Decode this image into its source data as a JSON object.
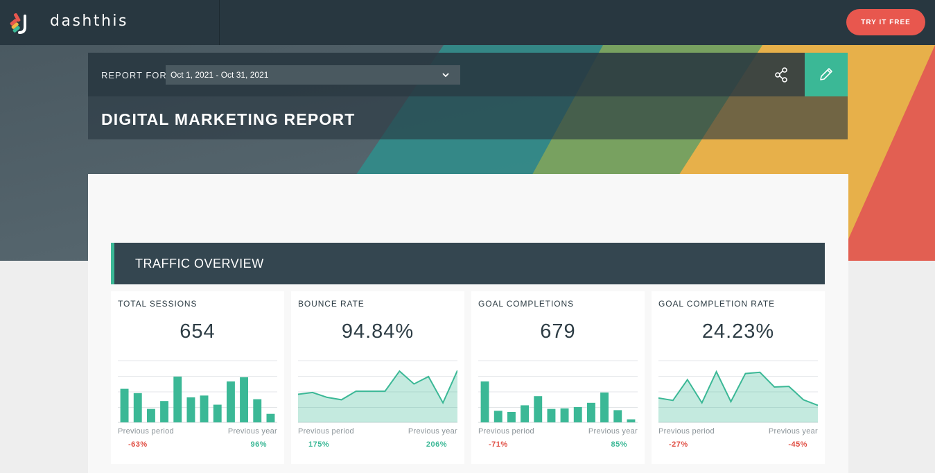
{
  "brand": {
    "name": "dashthis",
    "cta_label": "TRY IT FREE"
  },
  "report": {
    "report_for_label": "REPORT FOR",
    "date_range": "Oct 1, 2021 - Oct 31, 2021",
    "title": "DIGITAL MARKETING REPORT"
  },
  "section": {
    "title": "TRAFFIC OVERVIEW"
  },
  "colors": {
    "accent": "#3bb896",
    "negative": "#e04e43",
    "cta": "#e8574e",
    "header_dark": "#283740"
  },
  "icons": {
    "share": "share-icon",
    "edit": "pencil-icon",
    "dropdown": "chevron-down-icon"
  },
  "widgets": [
    {
      "title": "TOTAL SESSIONS",
      "value": "654",
      "chart_type": "bar",
      "series": [
        55,
        48,
        22,
        35,
        75,
        41,
        44,
        29,
        67,
        74,
        38,
        14
      ],
      "prev_period_label": "Previous period",
      "prev_period_change": "-63%",
      "prev_period_trend": "negative",
      "prev_year_label": "Previous year",
      "prev_year_change": "96%",
      "prev_year_trend": "positive"
    },
    {
      "title": "BOUNCE RATE",
      "value": "94.84%",
      "chart_type": "area",
      "series": [
        46,
        49,
        41,
        37,
        51,
        51,
        51,
        84,
        63,
        75,
        32,
        85
      ],
      "prev_period_label": "Previous period",
      "prev_period_change": "175%",
      "prev_period_trend": "positive",
      "prev_year_label": "Previous year",
      "prev_year_change": "206%",
      "prev_year_trend": "positive"
    },
    {
      "title": "GOAL COMPLETIONS",
      "value": "679",
      "chart_type": "bar",
      "series": [
        67,
        19,
        17,
        28,
        43,
        22,
        23,
        25,
        32,
        49,
        20,
        5
      ],
      "prev_period_label": "Previous period",
      "prev_period_change": "-71%",
      "prev_period_trend": "negative",
      "prev_year_label": "Previous year",
      "prev_year_change": "85%",
      "prev_year_trend": "positive"
    },
    {
      "title": "GOAL COMPLETION RATE",
      "value": "24.23%",
      "chart_type": "area",
      "series": [
        40,
        36,
        70,
        32,
        83,
        34,
        80,
        82,
        58,
        59,
        37,
        28
      ],
      "prev_period_label": "Previous period",
      "prev_period_change": "-27%",
      "prev_period_trend": "negative",
      "prev_year_label": "Previous year",
      "prev_year_change": "-45%",
      "prev_year_trend": "negative"
    }
  ]
}
